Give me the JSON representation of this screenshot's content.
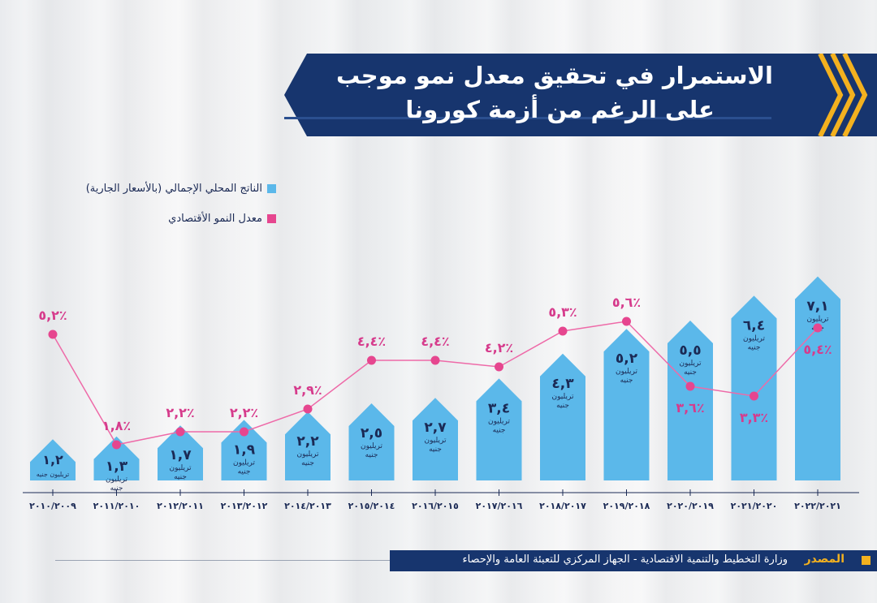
{
  "title": {
    "line1": "الاستمرار في تحقيق معدل نمو موجب",
    "line2": "على الرغم من أزمة كورونا"
  },
  "legend": {
    "gdp": "الناتج المحلي الإجمالي (بالأسعار الجارية)",
    "growth": "معدل النمو الأقتصادي"
  },
  "colors": {
    "banner": "#17356e",
    "bar": "#5bb8ea",
    "line": "#ee6aa8",
    "point": "#e6468f",
    "value_text": "#1b2a55",
    "pct_text": "#d63b8c",
    "accent": "#f3b11f"
  },
  "chart_data": {
    "type": "bar",
    "categories": [
      "٢٠١٠/٢٠٠٩",
      "٢٠١١/٢٠١٠",
      "٢٠١٢/٢٠١١",
      "٢٠١٣/٢٠١٢",
      "٢٠١٤/٢٠١٣",
      "٢٠١٥/٢٠١٤",
      "٢٠١٦/٢٠١٥",
      "٢٠١٧/٢٠١٦",
      "٢٠١٨/٢٠١٧",
      "٢٠١٩/٢٠١٨",
      "٢٠٢٠/٢٠١٩",
      "٢٠٢١/٢٠٢٠",
      "٢٠٢٢/٢٠٢١"
    ],
    "series": [
      {
        "name": "الناتج المحلي الإجمالي (بالأسعار الجارية)",
        "type": "bar",
        "values": [
          1.2,
          1.3,
          1.7,
          1.9,
          2.2,
          2.5,
          2.7,
          3.4,
          4.3,
          5.2,
          5.5,
          6.4,
          7.1
        ],
        "value_labels": [
          "١,٢",
          "١,٣",
          "١,٧",
          "١,٩",
          "٢,٢",
          "٢,٥",
          "٢,٧",
          "٣,٤",
          "٤,٣",
          "٥,٢",
          "٥,٥",
          "٦,٤",
          "٧,١"
        ],
        "unit_line1": "تريليون",
        "unit_line2": "جنيه",
        "unit_single": "تريليون جنيه"
      },
      {
        "name": "معدل النمو الأقتصادي",
        "type": "line",
        "values": [
          5.2,
          1.8,
          2.2,
          2.2,
          2.9,
          4.4,
          4.4,
          4.2,
          5.3,
          5.6,
          3.6,
          3.3,
          5.4
        ],
        "value_labels": [
          "٥,٢٪",
          "١,٨٪",
          "٢,٢٪",
          "٢,٢٪",
          "٢,٩٪",
          "٤,٤٪",
          "٤,٤٪",
          "٤,٢٪",
          "٥,٣٪",
          "٥,٦٪",
          "٣,٦٪",
          "٣,٣٪",
          "٥,٤٪"
        ],
        "label_below": [
          false,
          false,
          false,
          false,
          false,
          false,
          false,
          false,
          false,
          false,
          true,
          true,
          true
        ]
      }
    ],
    "legend_position": "top-left",
    "grid": false
  },
  "source": {
    "label": "المصدر",
    "text": "وزارة التخطيط والتنمية الاقتصادية - الجهاز المركزي للتعبئة العامة والإحصاء"
  }
}
